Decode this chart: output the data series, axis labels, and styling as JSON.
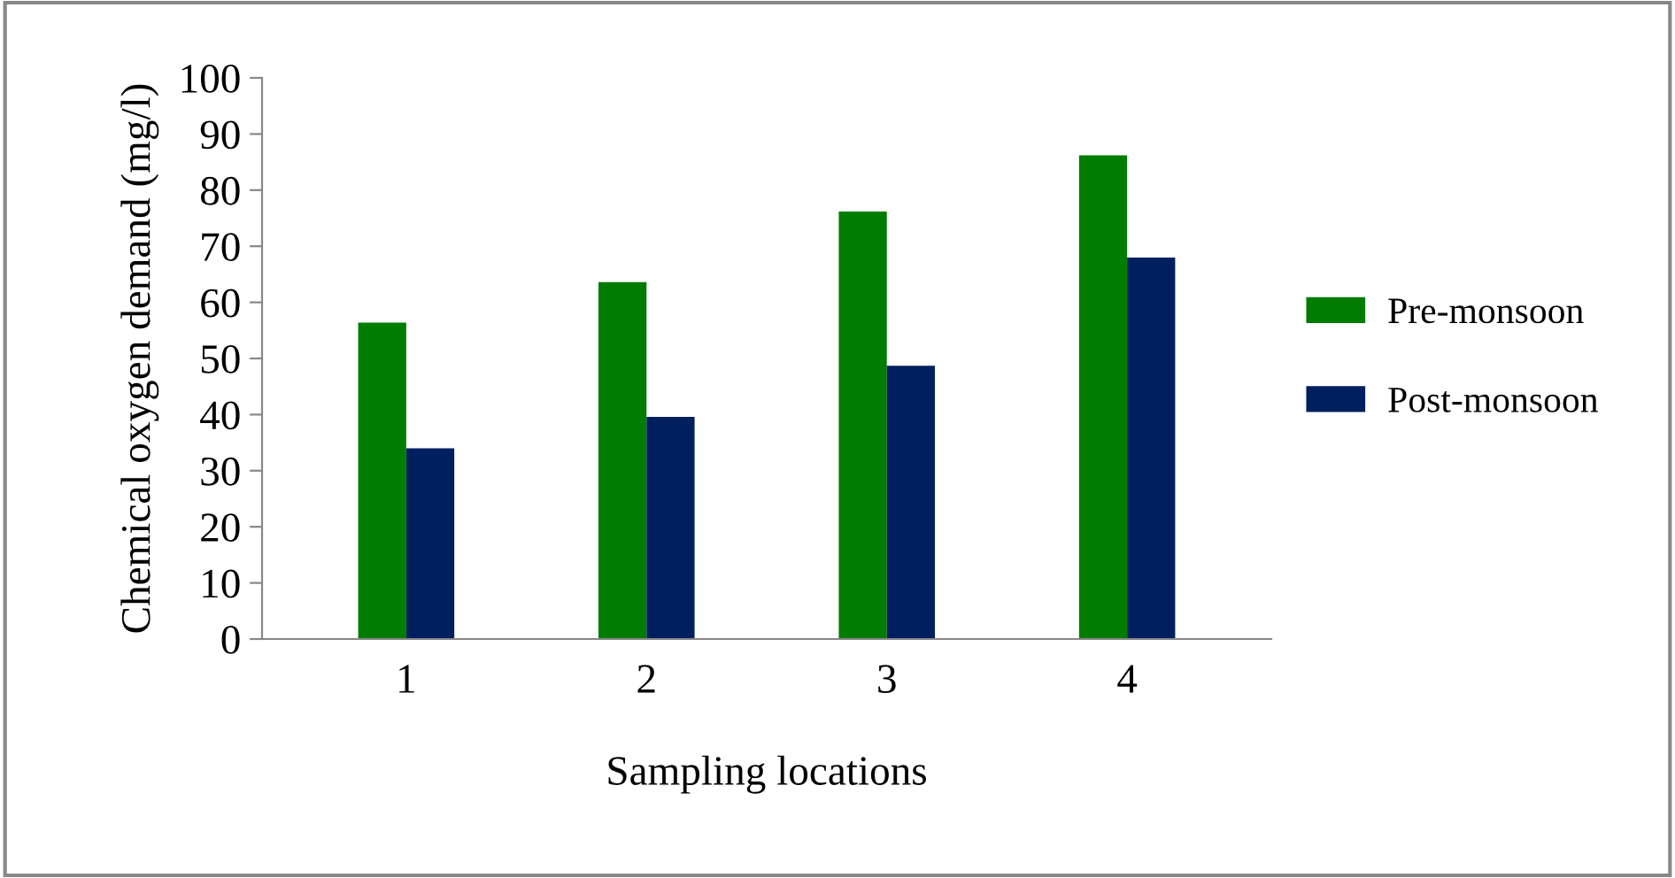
{
  "chart_data": {
    "type": "bar",
    "xlabel": "Sampling locations",
    "ylabel": "Chemical oxygen demand (mg/l)",
    "categories": [
      "1",
      "2",
      "3",
      "4"
    ],
    "series": [
      {
        "name": "Pre-monsoon",
        "color": "#007c00",
        "values": [
          56.4,
          63.6,
          76.2,
          86.2
        ]
      },
      {
        "name": "Post-monsoon",
        "color": "#001f5f",
        "values": [
          34,
          39.6,
          48.7,
          68
        ]
      }
    ],
    "ylim": [
      0,
      100
    ],
    "yticks": [
      0,
      10,
      20,
      30,
      40,
      50,
      60,
      70,
      80,
      90,
      100
    ],
    "grid": false,
    "legend": "right"
  }
}
